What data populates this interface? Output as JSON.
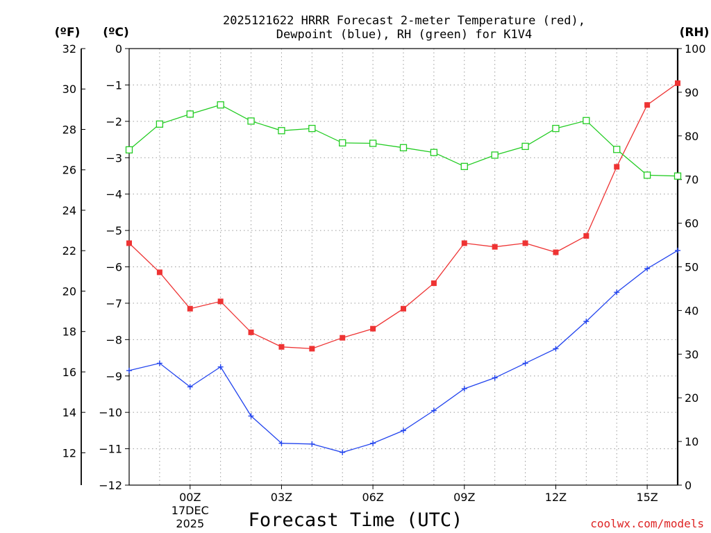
{
  "chart_data": {
    "type": "line",
    "title_line1": "2025121622 HRRR Forecast 2-meter Temperature (red),",
    "title_line2": "Dewpoint (blue), RH (green) for K1V4",
    "xlabel": "Forecast Time (UTC)",
    "watermark": "coolwx.com/models",
    "unit_f_label": "(ºF)",
    "unit_c_label": "(ºC)",
    "unit_rh_label": "(RH)",
    "x_hours": [
      22,
      23,
      24,
      25,
      26,
      27,
      28,
      29,
      30,
      31,
      32,
      33,
      34,
      35,
      36,
      37,
      38,
      39,
      40
    ],
    "xlim": [
      22,
      40
    ],
    "x_ticks": [
      {
        "hour": 24,
        "label": "00Z",
        "sub1": "17DEC",
        "sub2": "2025"
      },
      {
        "hour": 27,
        "label": "03Z",
        "sub1": "",
        "sub2": ""
      },
      {
        "hour": 30,
        "label": "06Z",
        "sub1": "",
        "sub2": ""
      },
      {
        "hour": 33,
        "label": "09Z",
        "sub1": "",
        "sub2": ""
      },
      {
        "hour": 36,
        "label": "12Z",
        "sub1": "",
        "sub2": ""
      },
      {
        "hour": 39,
        "label": "15Z",
        "sub1": "",
        "sub2": ""
      }
    ],
    "ylim_c": [
      -12,
      0
    ],
    "y_ticks_c": [
      "0",
      "−1",
      "−2",
      "−3",
      "−4",
      "−5",
      "−6",
      "−7",
      "−8",
      "−9",
      "−10",
      "−11",
      "−12"
    ],
    "y_ticks_c_values": [
      0,
      -1,
      -2,
      -3,
      -4,
      -5,
      -6,
      -7,
      -8,
      -9,
      -10,
      -11,
      -12
    ],
    "y_ticks_f": [
      "32",
      "30",
      "28",
      "26",
      "24",
      "22",
      "20",
      "18",
      "16",
      "14",
      "12"
    ],
    "y_ticks_f_values": [
      32,
      30,
      28,
      26,
      24,
      22,
      20,
      18,
      16,
      14,
      12
    ],
    "ylim_rh": [
      0,
      100
    ],
    "y_ticks_rh": [
      "100",
      "90",
      "80",
      "70",
      "60",
      "50",
      "40",
      "30",
      "20",
      "10",
      "0"
    ],
    "y_ticks_rh_values": [
      100,
      90,
      80,
      70,
      60,
      50,
      40,
      30,
      20,
      10,
      0
    ],
    "grid": true,
    "series": [
      {
        "name": "Temperature",
        "unit": "C",
        "color": "#ee3333",
        "marker": "filled-square",
        "values": [
          -5.35,
          -6.15,
          -7.15,
          -6.95,
          -7.8,
          -8.2,
          -8.25,
          -7.95,
          -7.7,
          -7.15,
          -6.45,
          -5.35,
          -5.45,
          -5.35,
          -5.6,
          -5.15,
          -3.25,
          -1.55,
          -0.95
        ]
      },
      {
        "name": "Dewpoint",
        "unit": "C",
        "color": "#2244ee",
        "marker": "plus",
        "values": [
          -8.85,
          -8.65,
          -9.3,
          -8.75,
          -10.1,
          -10.85,
          -10.87,
          -11.1,
          -10.85,
          -10.5,
          -9.95,
          -9.35,
          -9.05,
          -8.65,
          -8.25,
          -7.5,
          -6.7,
          -6.05,
          -5.55
        ]
      },
      {
        "name": "RH",
        "unit": "%",
        "color": "#22cc22",
        "marker": "open-square",
        "values": [
          76.8,
          82.7,
          85.0,
          87.1,
          83.4,
          81.2,
          81.7,
          78.4,
          78.3,
          77.3,
          76.2,
          73.0,
          75.6,
          77.6,
          81.7,
          83.5,
          76.9,
          71.0,
          70.8
        ]
      }
    ]
  }
}
